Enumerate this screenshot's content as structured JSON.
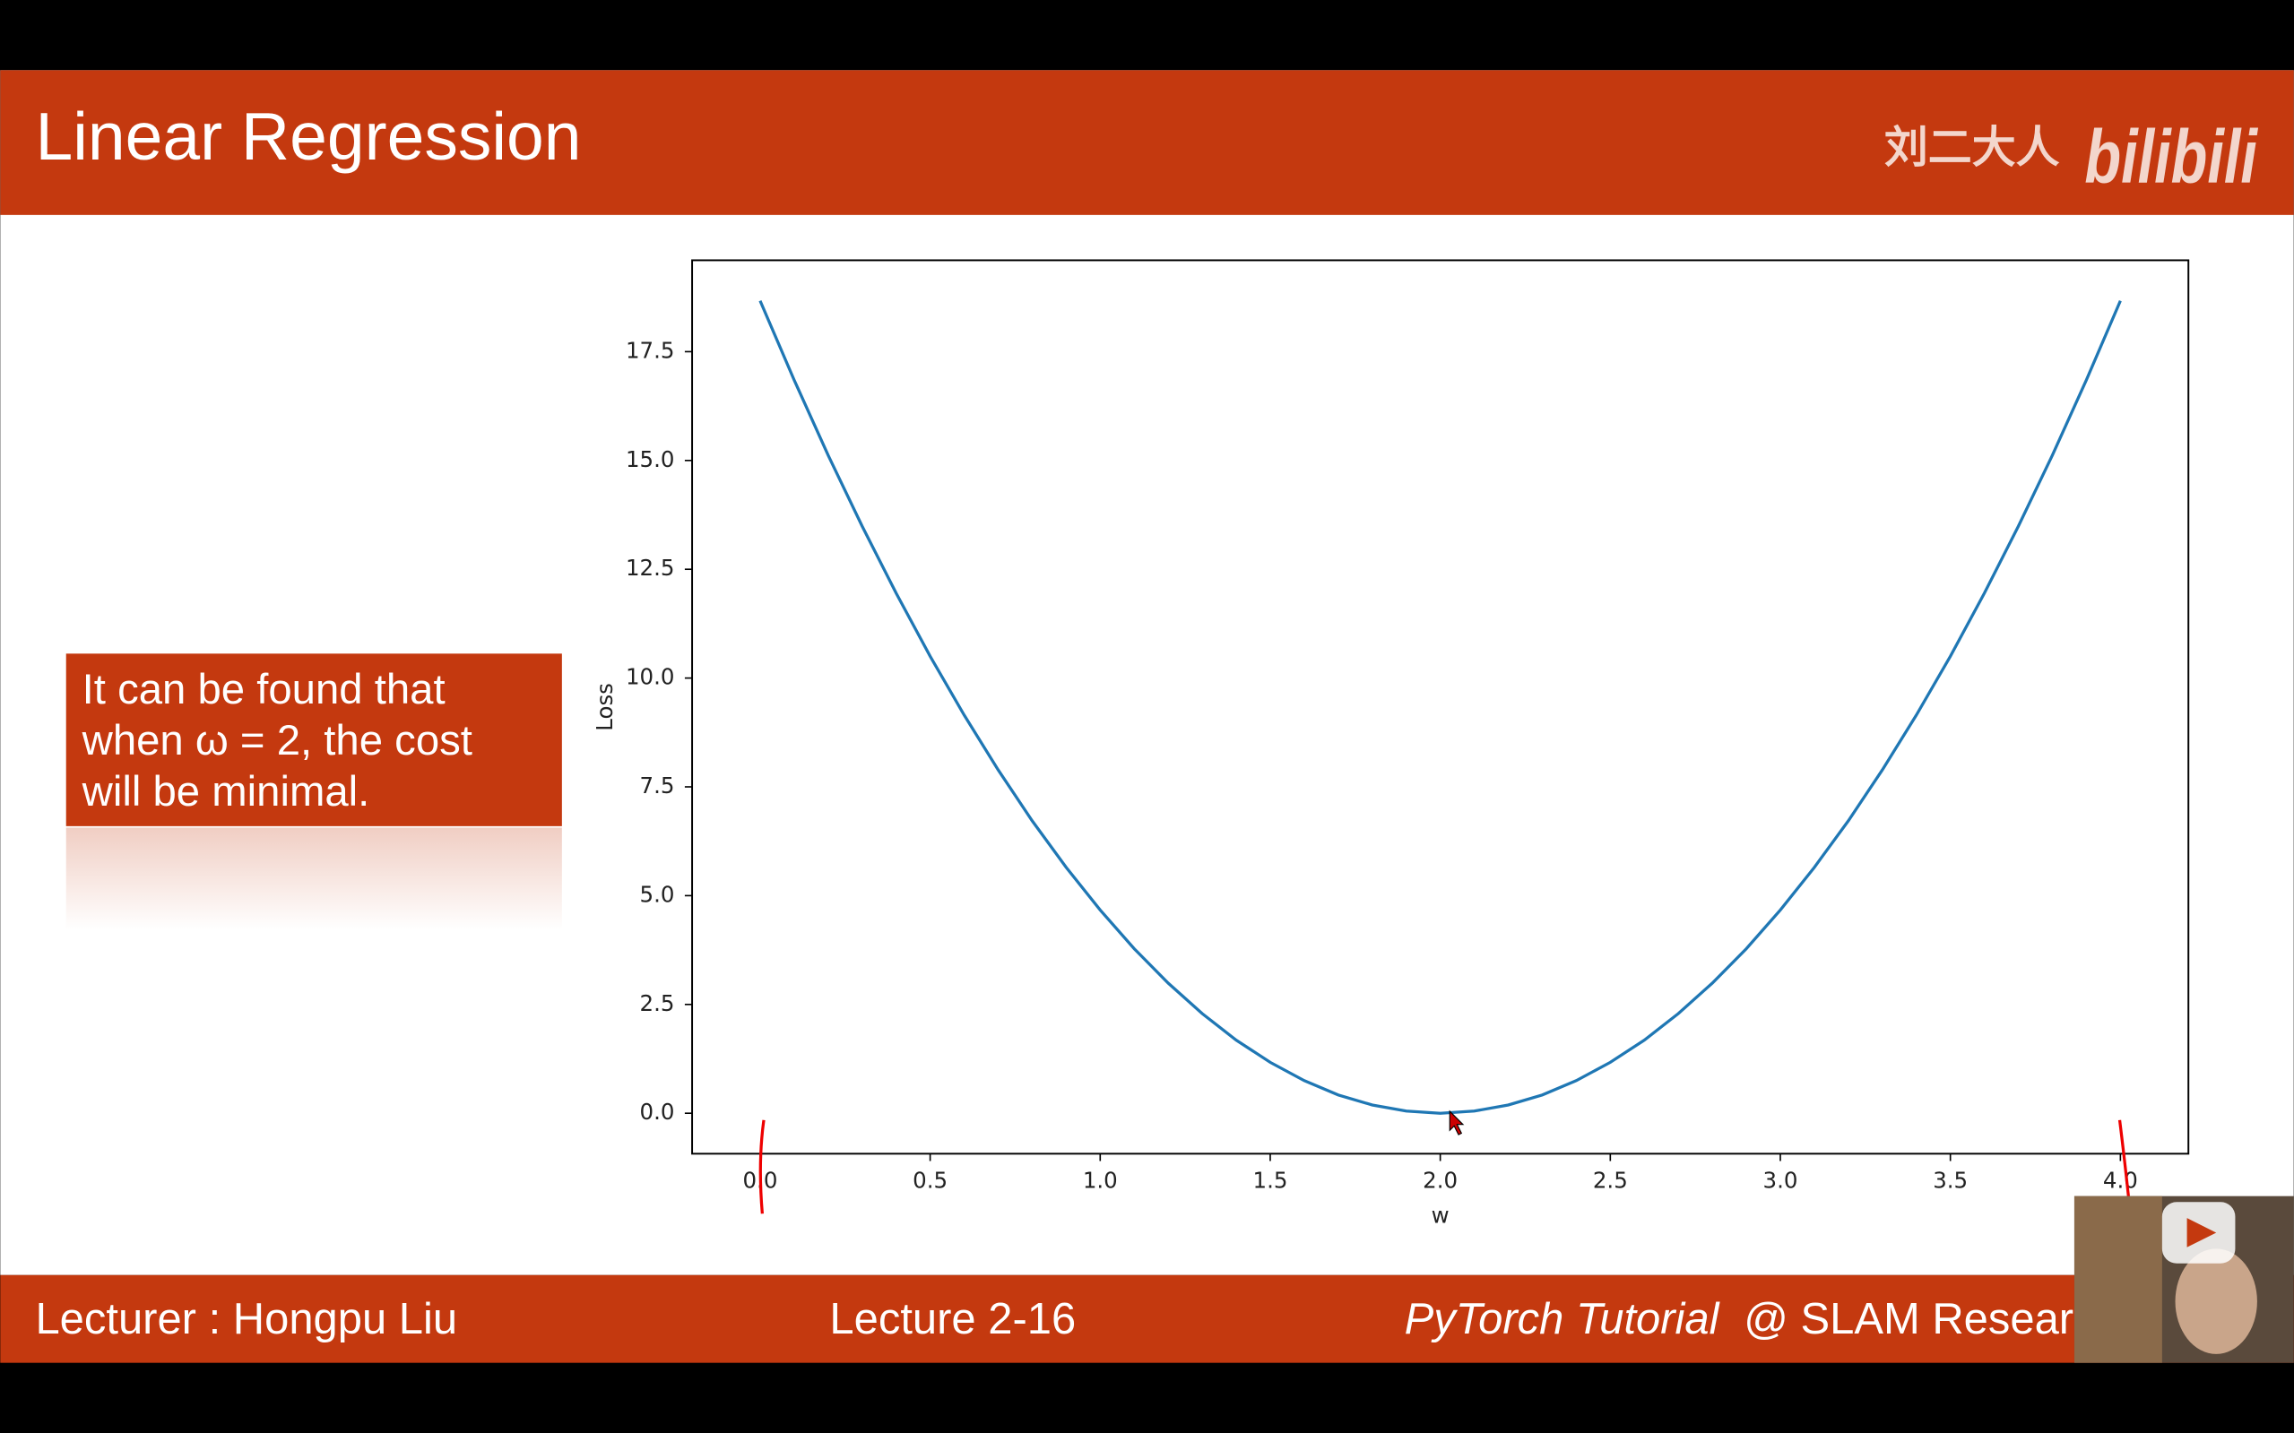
{
  "header": {
    "title": "Linear Regression",
    "logo_author": "刘二大人",
    "logo_site": "bilibili"
  },
  "callout": {
    "lines": [
      "It can be found that",
      "when ω = 2, the cost",
      "will be minimal."
    ]
  },
  "footer": {
    "lecturer": "Lecturer : Hongpu Liu",
    "lecture": "Lecture 2-16",
    "course": "PyTorch Tutorial",
    "org": "@ SLAM Resear"
  },
  "chart_data": {
    "type": "line",
    "x_label": "w",
    "y_label": "Loss",
    "color": "#1f77b4",
    "x": [
      0.0,
      0.1,
      0.2,
      0.3,
      0.4,
      0.5,
      0.6,
      0.7,
      0.8,
      0.9,
      1.0,
      1.1,
      1.2,
      1.3,
      1.4,
      1.5,
      1.6,
      1.7,
      1.8,
      1.9,
      2.0,
      2.1,
      2.2,
      2.3,
      2.4,
      2.5,
      2.6,
      2.7,
      2.8,
      2.9,
      3.0,
      3.1,
      3.2,
      3.3,
      3.4,
      3.5,
      3.6,
      3.7,
      3.8,
      3.9,
      4.0
    ],
    "values": [
      18.67,
      16.85,
      15.12,
      13.49,
      11.95,
      10.5,
      9.15,
      7.89,
      6.72,
      5.65,
      4.67,
      3.78,
      2.99,
      2.29,
      1.68,
      1.17,
      0.75,
      0.42,
      0.19,
      0.05,
      0,
      0.05,
      0.19,
      0.42,
      0.75,
      1.17,
      1.68,
      2.29,
      2.99,
      3.78,
      4.67,
      5.65,
      6.72,
      7.89,
      9.15,
      10.5,
      11.95,
      13.49,
      15.12,
      16.85,
      18.67
    ],
    "xlim": [
      -0.2,
      4.2
    ],
    "ylim": [
      -0.93,
      19.6
    ],
    "xticks": [
      {
        "value": 0,
        "label": "0.0"
      },
      0.5,
      {
        "value": 1,
        "label": "1.0"
      },
      1.5,
      {
        "value": 2,
        "label": "2.0"
      },
      2.5,
      {
        "value": 3,
        "label": "3.0"
      },
      3.5,
      {
        "value": 4,
        "label": "4.0"
      }
    ],
    "yticks": [
      {
        "value": 0,
        "label": "0.0"
      },
      2.5,
      {
        "value": 5,
        "label": "5.0"
      },
      7.5,
      {
        "value": 10,
        "label": "10.0"
      },
      12.5,
      {
        "value": 15,
        "label": "15.0"
      },
      17.5
    ]
  }
}
